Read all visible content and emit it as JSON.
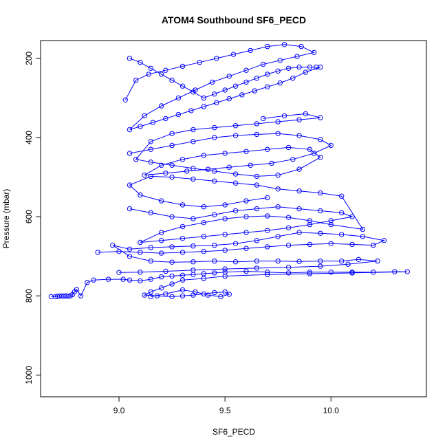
{
  "chart_data": {
    "type": "scatter",
    "title": "ATOM4 Southbound SF6_PECD",
    "xlabel": "SF6_PECD",
    "ylabel": "Pressure (mbar)",
    "xlim": [
      8.63,
      10.45
    ],
    "ylim": [
      1055,
      155
    ],
    "y_reversed": true,
    "x_ticks": [
      9.0,
      9.5,
      10.0
    ],
    "x_tick_labels": [
      "9.0",
      "9.5",
      "10.0"
    ],
    "y_ticks": [
      200,
      400,
      600,
      800,
      1000
    ],
    "y_tick_labels": [
      "200",
      "400",
      "600",
      "800",
      "1000"
    ],
    "series_color": "#0000ff",
    "marker": "open-circle",
    "connected": true,
    "grid": false,
    "series": [
      {
        "values": [
          [
            8.68,
            802
          ],
          [
            8.7,
            802
          ],
          [
            8.71,
            801
          ],
          [
            8.72,
            801
          ],
          [
            8.73,
            800
          ],
          [
            8.74,
            801
          ],
          [
            8.75,
            800
          ],
          [
            8.76,
            801
          ],
          [
            8.77,
            800
          ],
          [
            8.78,
            797
          ],
          [
            8.79,
            790
          ],
          [
            8.8,
            784
          ],
          [
            8.82,
            800
          ],
          [
            8.85,
            766
          ],
          [
            8.88,
            760
          ],
          [
            8.95,
            758
          ],
          [
            9.02,
            758
          ],
          [
            9.05,
            760
          ],
          [
            9.1,
            762
          ],
          [
            9.15,
            758
          ],
          [
            9.2,
            752
          ],
          [
            9.25,
            750
          ],
          [
            9.3,
            748
          ],
          [
            9.35,
            746
          ],
          [
            9.4,
            744
          ],
          [
            9.45,
            742
          ],
          [
            9.5,
            740
          ],
          [
            9.6,
            738
          ],
          [
            9.7,
            740
          ],
          [
            9.8,
            742
          ],
          [
            9.9,
            740
          ],
          [
            10.0,
            740
          ],
          [
            10.1,
            740
          ],
          [
            10.2,
            740
          ],
          [
            10.3,
            739
          ],
          [
            10.36,
            739
          ],
          [
            10.1,
            742
          ],
          [
            9.9,
            744
          ],
          [
            9.7,
            746
          ],
          [
            9.5,
            750
          ],
          [
            9.4,
            756
          ],
          [
            9.3,
            760
          ],
          [
            9.25,
            770
          ],
          [
            9.2,
            780
          ],
          [
            9.15,
            790
          ],
          [
            9.12,
            798
          ],
          [
            9.18,
            800
          ],
          [
            9.25,
            802
          ],
          [
            9.3,
            800
          ],
          [
            9.35,
            798
          ],
          [
            9.4,
            795
          ],
          [
            9.45,
            792
          ],
          [
            9.5,
            790
          ],
          [
            9.52,
            796
          ],
          [
            9.48,
            802
          ],
          [
            9.42,
            798
          ],
          [
            9.36,
            790
          ],
          [
            9.3,
            785
          ],
          [
            9.22,
            795
          ],
          [
            9.15,
            802
          ]
        ]
      },
      {
        "values": [
          [
            8.9,
            690
          ],
          [
            9.0,
            688
          ],
          [
            9.1,
            690
          ],
          [
            9.2,
            692
          ],
          [
            9.3,
            690
          ],
          [
            9.4,
            688
          ],
          [
            9.5,
            685
          ],
          [
            9.6,
            680
          ],
          [
            9.7,
            676
          ],
          [
            9.8,
            672
          ],
          [
            9.9,
            670
          ],
          [
            10.0,
            668
          ],
          [
            10.1,
            670
          ],
          [
            10.2,
            672
          ],
          [
            10.25,
            660
          ],
          [
            10.15,
            650
          ],
          [
            10.05,
            645
          ],
          [
            9.95,
            642
          ],
          [
            9.85,
            640
          ],
          [
            9.75,
            650
          ],
          [
            9.65,
            660
          ],
          [
            9.55,
            668
          ],
          [
            9.45,
            672
          ],
          [
            9.35,
            674
          ],
          [
            9.25,
            676
          ],
          [
            9.15,
            678
          ],
          [
            9.05,
            682
          ],
          [
            8.97,
            672
          ],
          [
            9.05,
            700
          ],
          [
            9.15,
            712
          ],
          [
            9.25,
            715
          ],
          [
            9.35,
            714
          ],
          [
            9.45,
            712
          ],
          [
            9.55,
            714
          ],
          [
            9.65,
            712
          ],
          [
            9.75,
            712
          ],
          [
            9.85,
            713
          ],
          [
            9.95,
            712
          ],
          [
            10.05,
            712
          ],
          [
            10.13,
            708
          ],
          [
            10.22,
            712
          ],
          [
            10.08,
            720
          ],
          [
            9.95,
            725
          ],
          [
            9.8,
            728
          ],
          [
            9.65,
            730
          ],
          [
            9.5,
            732
          ],
          [
            9.35,
            735
          ],
          [
            9.22,
            738
          ],
          [
            9.1,
            740
          ],
          [
            9.0,
            741
          ]
        ]
      },
      {
        "values": [
          [
            9.05,
            580
          ],
          [
            9.15,
            590
          ],
          [
            9.25,
            600
          ],
          [
            9.35,
            605
          ],
          [
            9.45,
            595
          ],
          [
            9.55,
            585
          ],
          [
            9.65,
            580
          ],
          [
            9.75,
            575
          ],
          [
            9.85,
            580
          ],
          [
            9.95,
            585
          ],
          [
            10.05,
            590
          ],
          [
            10.1,
            600
          ],
          [
            10.0,
            610
          ],
          [
            9.9,
            620
          ],
          [
            9.8,
            628
          ],
          [
            9.7,
            635
          ],
          [
            9.6,
            640
          ],
          [
            9.5,
            645
          ],
          [
            9.4,
            650
          ],
          [
            9.3,
            655
          ],
          [
            9.2,
            660
          ],
          [
            9.1,
            665
          ],
          [
            9.2,
            640
          ],
          [
            9.3,
            625
          ],
          [
            9.4,
            615
          ],
          [
            9.5,
            605
          ],
          [
            9.6,
            600
          ],
          [
            9.7,
            598
          ],
          [
            9.8,
            602
          ],
          [
            9.9,
            610
          ],
          [
            10.0,
            620
          ],
          [
            10.15,
            632
          ],
          [
            10.05,
            548
          ],
          [
            9.95,
            540
          ],
          [
            9.85,
            535
          ],
          [
            9.75,
            530
          ],
          [
            9.65,
            520
          ],
          [
            9.55,
            515
          ],
          [
            9.45,
            510
          ],
          [
            9.35,
            505
          ],
          [
            9.25,
            500
          ],
          [
            9.15,
            498
          ],
          [
            9.05,
            520
          ],
          [
            9.1,
            545
          ],
          [
            9.2,
            560
          ],
          [
            9.3,
            570
          ],
          [
            9.4,
            575
          ],
          [
            9.5,
            570
          ],
          [
            9.6,
            560
          ],
          [
            9.7,
            552
          ]
        ]
      },
      {
        "values": [
          [
            9.05,
            440
          ],
          [
            9.15,
            430
          ],
          [
            9.25,
            420
          ],
          [
            9.35,
            410
          ],
          [
            9.45,
            400
          ],
          [
            9.55,
            395
          ],
          [
            9.65,
            392
          ],
          [
            9.75,
            390
          ],
          [
            9.85,
            395
          ],
          [
            9.95,
            405
          ],
          [
            10.0,
            420
          ],
          [
            9.92,
            440
          ],
          [
            9.82,
            455
          ],
          [
            9.72,
            465
          ],
          [
            9.62,
            470
          ],
          [
            9.52,
            475
          ],
          [
            9.42,
            480
          ],
          [
            9.32,
            485
          ],
          [
            9.22,
            490
          ],
          [
            9.12,
            495
          ],
          [
            9.2,
            470
          ],
          [
            9.3,
            455
          ],
          [
            9.4,
            445
          ],
          [
            9.5,
            440
          ],
          [
            9.6,
            435
          ],
          [
            9.7,
            430
          ],
          [
            9.8,
            425
          ],
          [
            9.9,
            430
          ],
          [
            9.95,
            450
          ],
          [
            9.85,
            480
          ],
          [
            9.75,
            495
          ],
          [
            9.65,
            498
          ],
          [
            9.55,
            492
          ],
          [
            9.45,
            485
          ],
          [
            9.35,
            478
          ],
          [
            9.25,
            470
          ],
          [
            9.15,
            462
          ],
          [
            9.08,
            455
          ],
          [
            9.15,
            410
          ],
          [
            9.25,
            390
          ],
          [
            9.35,
            380
          ],
          [
            9.45,
            375
          ],
          [
            9.55,
            370
          ],
          [
            9.65,
            365
          ],
          [
            9.75,
            360
          ],
          [
            9.85,
            355
          ],
          [
            9.95,
            350
          ],
          [
            9.88,
            340
          ],
          [
            9.78,
            345
          ],
          [
            9.68,
            352
          ]
        ]
      },
      {
        "values": [
          [
            9.05,
            200
          ],
          [
            9.1,
            210
          ],
          [
            9.15,
            225
          ],
          [
            9.2,
            240
          ],
          [
            9.25,
            255
          ],
          [
            9.3,
            270
          ],
          [
            9.35,
            285
          ],
          [
            9.4,
            300
          ],
          [
            9.45,
            290
          ],
          [
            9.5,
            280
          ],
          [
            9.55,
            270
          ],
          [
            9.6,
            260
          ],
          [
            9.65,
            250
          ],
          [
            9.7,
            240
          ],
          [
            9.75,
            232
          ],
          [
            9.8,
            225
          ],
          [
            9.85,
            222
          ],
          [
            9.9,
            222
          ],
          [
            9.93,
            222
          ],
          [
            9.95,
            222
          ],
          [
            9.88,
            235
          ],
          [
            9.82,
            250
          ],
          [
            9.76,
            262
          ],
          [
            9.7,
            272
          ],
          [
            9.64,
            282
          ],
          [
            9.58,
            292
          ],
          [
            9.52,
            302
          ],
          [
            9.46,
            312
          ],
          [
            9.4,
            322
          ],
          [
            9.34,
            332
          ],
          [
            9.28,
            342
          ],
          [
            9.22,
            352
          ],
          [
            9.16,
            362
          ],
          [
            9.1,
            372
          ],
          [
            9.05,
            380
          ],
          [
            9.12,
            345
          ],
          [
            9.2,
            320
          ],
          [
            9.28,
            300
          ],
          [
            9.36,
            280
          ],
          [
            9.44,
            260
          ],
          [
            9.52,
            245
          ],
          [
            9.6,
            230
          ],
          [
            9.68,
            215
          ],
          [
            9.76,
            205
          ],
          [
            9.84,
            195
          ],
          [
            9.92,
            185
          ],
          [
            9.86,
            170
          ],
          [
            9.78,
            165
          ],
          [
            9.7,
            170
          ],
          [
            9.62,
            180
          ],
          [
            9.54,
            190
          ],
          [
            9.46,
            200
          ],
          [
            9.38,
            210
          ],
          [
            9.3,
            220
          ],
          [
            9.22,
            230
          ],
          [
            9.14,
            240
          ],
          [
            9.08,
            255
          ],
          [
            9.03,
            305
          ]
        ]
      }
    ]
  }
}
